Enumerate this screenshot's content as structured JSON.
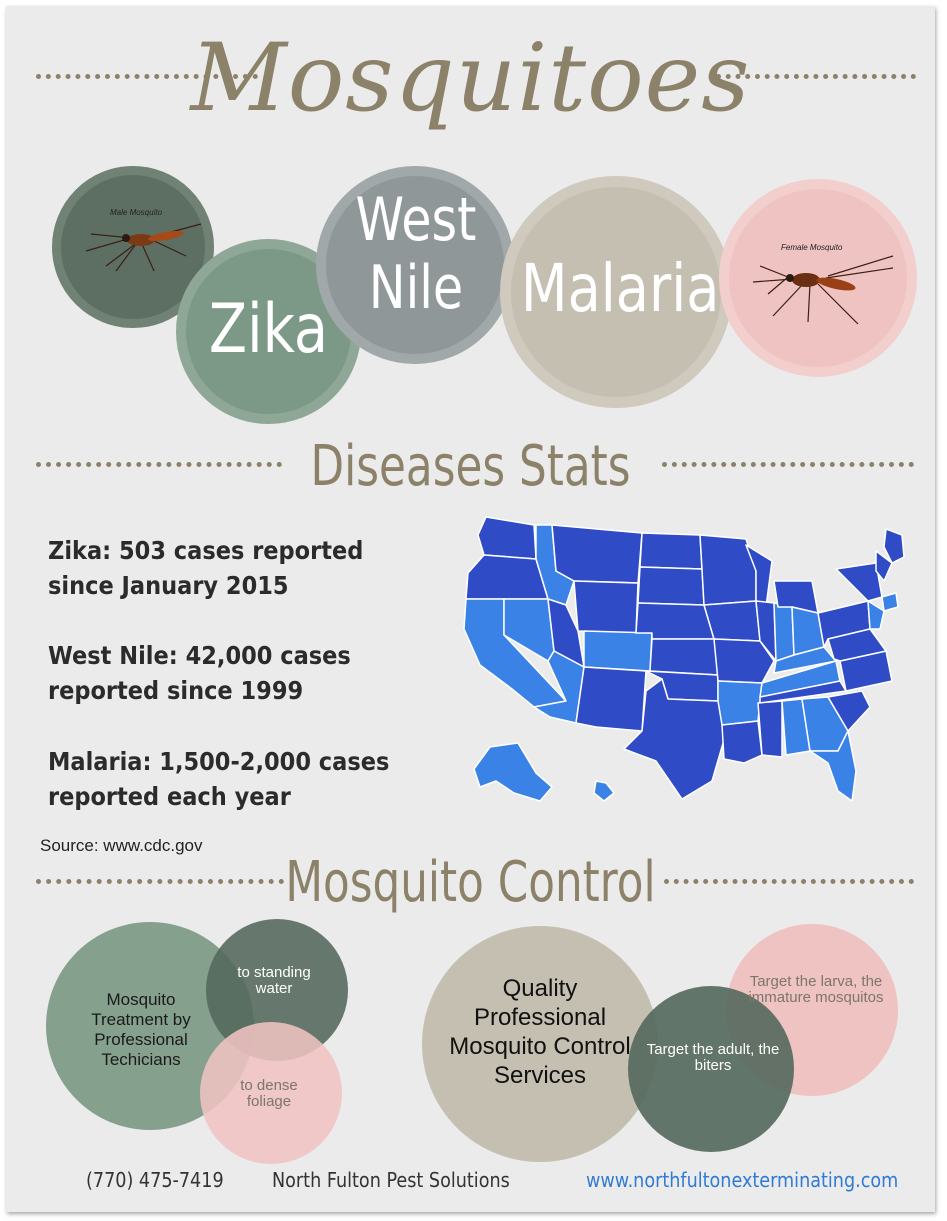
{
  "title": "Mosquitoes",
  "diseases": [
    "Zika",
    "West Nile",
    "Malaria"
  ],
  "images": {
    "male_label": "Male Mosquito",
    "female_label": "Female Mosquito"
  },
  "stats_section": {
    "title": "Diseases Stats",
    "zika": "Zika:  503 cases reported since January 2015",
    "west_nile": "West Nile:  42,000 cases reported since 1999",
    "malaria": "Malaria:  1,500-2,000 cases reported each year",
    "source": "Source:  www.cdc.gov"
  },
  "control_section": {
    "title": "Mosquito Control",
    "treatment": "Mosquito Treatment by Professional Techicians",
    "standing_water": "to standing water",
    "dense_foliage": "to dense foliage",
    "quality": "Quality Professional Mosquito Control Services",
    "adult": "Target the adult, the biters",
    "larva": "Target the larva, the immature mosquitos"
  },
  "footer": {
    "phone": "(770) 475-7419",
    "company": "North Fulton Pest Solutions",
    "website": "www.northfultonexterminating.com"
  },
  "colors": {
    "accent": "#8c8269",
    "dark_green": "#5c6f62",
    "mid_green": "#7c9886",
    "gray": "#8f9799",
    "tan": "#c5bfb2",
    "pink": "#efc3c1",
    "map_dark": "#2f4bc5",
    "map_light": "#3a82e6",
    "link": "#2f7bd4"
  }
}
